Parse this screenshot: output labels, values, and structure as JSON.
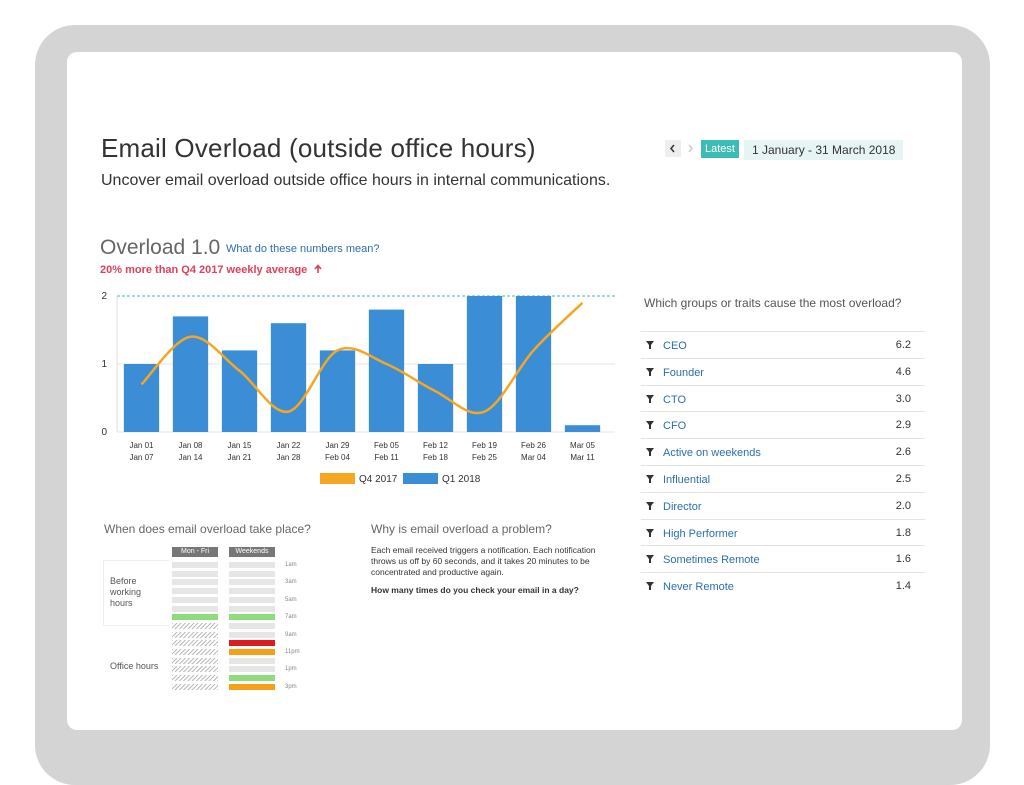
{
  "header": {
    "title": "Email Overload (outside office hours)",
    "subtitle": "Uncover email overload outside office hours in internal communications."
  },
  "nav": {
    "latest": "Latest",
    "date_range": "1 January - 31 March 2018"
  },
  "overload": {
    "title": "Overload 1.0",
    "link": "What do these numbers mean?",
    "change": "20% more than Q4 2017 weekly average"
  },
  "chart_data": {
    "type": "combo",
    "categories": [
      [
        "Jan 01",
        "Jan 07"
      ],
      [
        "Jan 08",
        "Jan 14"
      ],
      [
        "Jan 15",
        "Jan 21"
      ],
      [
        "Jan 22",
        "Jan 28"
      ],
      [
        "Jan 29",
        "Feb 04"
      ],
      [
        "Feb 05",
        "Feb 11"
      ],
      [
        "Feb 12",
        "Feb 18"
      ],
      [
        "Feb 19",
        "Feb 25"
      ],
      [
        "Feb 26",
        "Mar 04"
      ],
      [
        "Mar 05",
        "Mar 11"
      ]
    ],
    "series": [
      {
        "name": "Q4 2017",
        "color": "#f5a623",
        "kind": "line",
        "values": [
          0.7,
          1.4,
          0.9,
          0.3,
          1.2,
          1.0,
          0.6,
          0.3,
          1.2,
          1.9
        ]
      },
      {
        "name": "Q1 2018",
        "color": "#3b8ed6",
        "kind": "bar",
        "values": [
          1.0,
          1.7,
          1.2,
          1.6,
          1.2,
          1.8,
          1.0,
          2.0,
          2.0,
          0.1
        ]
      }
    ],
    "ylim": [
      0,
      2
    ],
    "yticks": [
      0,
      1,
      2
    ],
    "grid": true
  },
  "groups": {
    "title": "Which groups or traits cause the most overload?",
    "rows": [
      [
        "CEO",
        "6.2"
      ],
      [
        "Founder",
        "4.6"
      ],
      [
        "CTO",
        "3.0"
      ],
      [
        "CFO",
        "2.9"
      ],
      [
        "Active on weekends",
        "2.6"
      ],
      [
        "Influential",
        "2.5"
      ],
      [
        "Director",
        "2.0"
      ],
      [
        "High Performer",
        "1.8"
      ],
      [
        "Sometimes Remote",
        "1.6"
      ],
      [
        "Never Remote",
        "1.4"
      ]
    ]
  },
  "when": {
    "title": "When does email overload take place?",
    "columns": [
      "Mon - Fri",
      "Weekends"
    ],
    "groups": [
      "Before working hours",
      "Office hours"
    ],
    "times": [
      "1am",
      "3am",
      "5am",
      "7am",
      "9am",
      "11pm",
      "1pm",
      "3pm"
    ]
  },
  "why": {
    "title": "Why is email overload a problem?",
    "body": "Each email received triggers a notification. Each notification throws us off by 60 seconds, and it takes 20 minutes to be concentrated and productive again.",
    "question": "How many times do you check your email in a day?"
  }
}
